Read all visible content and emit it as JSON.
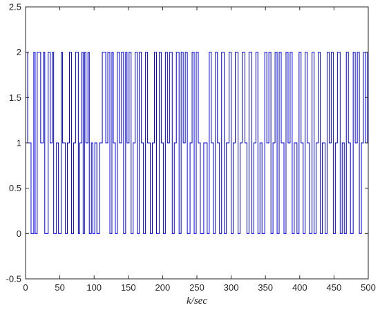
{
  "chart_data": {
    "type": "line",
    "step": true,
    "title": "",
    "xlabel": "k/sec",
    "ylabel": "",
    "xlim": [
      0,
      500
    ],
    "ylim": [
      -0.5,
      2.5
    ],
    "grid": false,
    "legend": "none",
    "x_ticks": [
      0,
      50,
      100,
      150,
      200,
      250,
      300,
      350,
      400,
      450,
      500
    ],
    "x_tick_labels": [
      "0",
      "50",
      "100",
      "150",
      "200",
      "250",
      "300",
      "350",
      "400",
      "450",
      "500"
    ],
    "y_ticks": [
      -0.5,
      0,
      0.5,
      1,
      1.5,
      2,
      2.5
    ],
    "y_tick_labels": [
      "-0.5",
      "0",
      "0.5",
      "1",
      "1.5",
      "2",
      "2.5"
    ],
    "series": [
      {
        "color": "#0000ff",
        "x": [
          0,
          3,
          8,
          12,
          14,
          17,
          22,
          26,
          28,
          33,
          36,
          39,
          41,
          45,
          48,
          52,
          54,
          58,
          61,
          64,
          67,
          70,
          73,
          77,
          79,
          82,
          84,
          86,
          88,
          91,
          93,
          96,
          98,
          101,
          104,
          108,
          112,
          117,
          120,
          123,
          126,
          128,
          131,
          134,
          137,
          140,
          143,
          146,
          148,
          151,
          154,
          157,
          160,
          163,
          166,
          169,
          172,
          175,
          178,
          182,
          185,
          188,
          191,
          195,
          198,
          201,
          204,
          207,
          210,
          214,
          217,
          220,
          224,
          227,
          230,
          233,
          236,
          240,
          243,
          246,
          249,
          252,
          255,
          260,
          265,
          268,
          271,
          274,
          277,
          280,
          283,
          286,
          290,
          293,
          297,
          300,
          303,
          306,
          310,
          313,
          316,
          320,
          323,
          326,
          330,
          333,
          336,
          339,
          342,
          345,
          349,
          352,
          355,
          358,
          361,
          364,
          367,
          370,
          373,
          377,
          380,
          383,
          386,
          389,
          392,
          396,
          399,
          402,
          405,
          408,
          411,
          414,
          418,
          421,
          424,
          427,
          430,
          433,
          437,
          440,
          443,
          446,
          449,
          452,
          455,
          459,
          462,
          465,
          468,
          471,
          474,
          478,
          481,
          484,
          487,
          490,
          493,
          496,
          499
        ],
        "y": [
          2,
          1,
          0,
          2,
          0,
          2,
          1,
          2,
          0,
          2,
          1,
          2,
          0,
          1,
          0,
          2,
          1,
          0,
          1,
          2,
          0,
          1,
          2,
          0,
          1,
          2,
          0,
          2,
          1,
          2,
          0,
          1,
          0,
          1,
          0,
          1,
          2,
          1,
          2,
          0,
          2,
          1,
          0,
          2,
          1,
          2,
          0,
          2,
          1,
          2,
          0,
          1,
          2,
          0,
          2,
          1,
          0,
          2,
          1,
          0,
          1,
          2,
          0,
          2,
          1,
          0,
          2,
          1,
          2,
          0,
          1,
          2,
          0,
          2,
          1,
          2,
          0,
          1,
          2,
          0,
          2,
          1,
          0,
          1,
          0,
          2,
          1,
          0,
          2,
          1,
          0,
          2,
          0,
          1,
          2,
          0,
          1,
          2,
          0,
          1,
          2,
          1,
          0,
          2,
          0,
          1,
          2,
          0,
          1,
          0,
          2,
          1,
          2,
          0,
          1,
          2,
          0,
          2,
          1,
          0,
          2,
          1,
          2,
          0,
          1,
          0,
          2,
          1,
          0,
          2,
          1,
          0,
          2,
          0,
          1,
          2,
          0,
          1,
          0,
          2,
          1,
          2,
          0,
          1,
          2,
          0,
          1,
          0,
          2,
          1,
          0,
          2,
          1,
          2,
          0,
          1,
          2,
          1,
          2
        ]
      }
    ]
  }
}
